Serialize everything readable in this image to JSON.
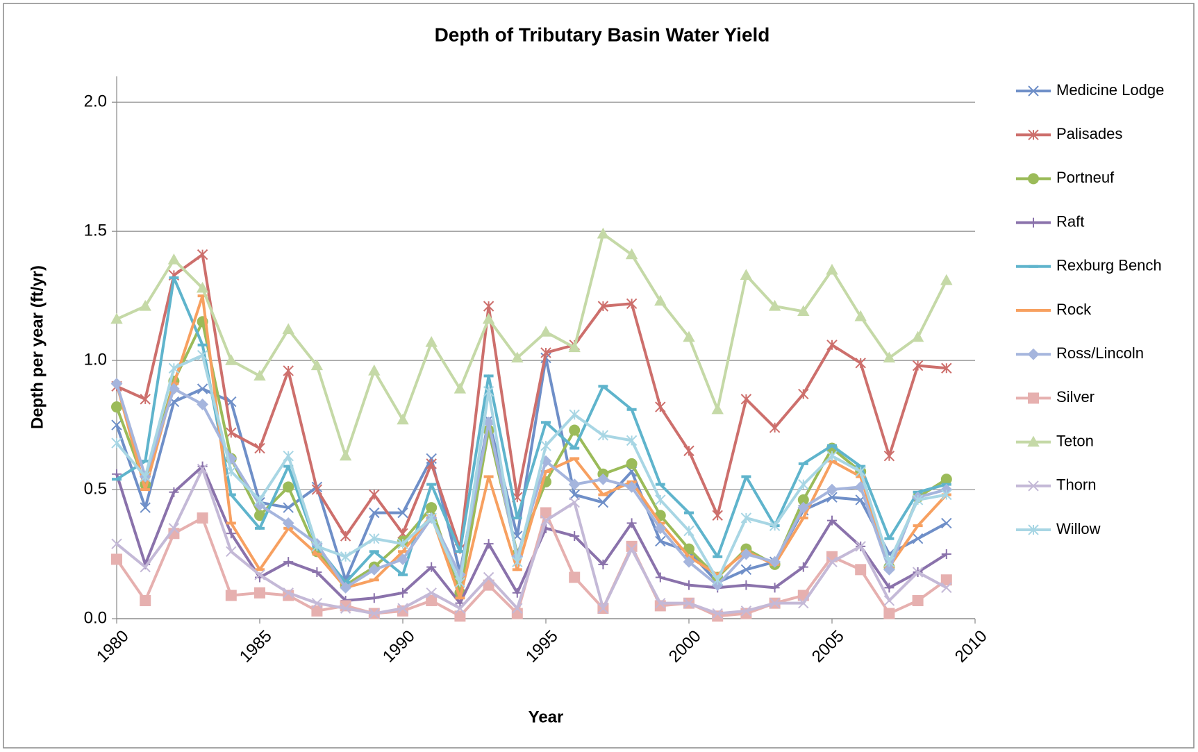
{
  "chart_data": {
    "type": "line",
    "title": "Depth of Tributary Basin Water Yield",
    "x_label": "Year",
    "y_label": "Depth per year (ft/yr)",
    "x": [
      1980,
      1981,
      1982,
      1983,
      1984,
      1985,
      1986,
      1987,
      1988,
      1989,
      1990,
      1991,
      1992,
      1993,
      1994,
      1995,
      1996,
      1997,
      1998,
      1999,
      2000,
      2001,
      2002,
      2003,
      2004,
      2005,
      2006,
      2007,
      2008,
      2009
    ],
    "xlim": [
      1980,
      2010
    ],
    "xticks": [
      1980,
      1985,
      1990,
      1995,
      2000,
      2005,
      2010
    ],
    "ylim": [
      0,
      2.1
    ],
    "yticks": [
      {
        "value": 0,
        "label": "0.0"
      },
      0.5,
      {
        "value": 1,
        "label": "1.0"
      },
      1.5,
      {
        "value": 2,
        "label": "2.0"
      }
    ],
    "grid": true,
    "legend": "right",
    "series": [
      {
        "name": "Medicine Lodge",
        "color": "#6f8fc8",
        "marker": "x",
        "values": [
          0.75,
          0.43,
          0.84,
          0.89,
          0.84,
          0.45,
          0.43,
          0.51,
          0.15,
          0.41,
          0.41,
          0.62,
          0.18,
          0.77,
          0.32,
          1.01,
          0.48,
          0.45,
          0.57,
          0.3,
          0.26,
          0.14,
          0.19,
          0.22,
          0.42,
          0.47,
          0.46,
          0.25,
          0.31,
          0.37
        ]
      },
      {
        "name": "Palisades",
        "color": "#cd6f6c",
        "marker": "asterisk",
        "values": [
          0.9,
          0.85,
          1.33,
          1.41,
          0.72,
          0.66,
          0.96,
          0.5,
          0.32,
          0.48,
          0.33,
          0.6,
          0.27,
          1.21,
          0.47,
          1.03,
          1.06,
          1.21,
          1.22,
          0.82,
          0.65,
          0.4,
          0.85,
          0.74,
          0.87,
          1.06,
          0.99,
          0.63,
          0.98,
          0.97
        ]
      },
      {
        "name": "Portneuf",
        "color": "#9bbb59",
        "marker": "circle",
        "values": [
          0.82,
          0.52,
          0.92,
          1.15,
          0.62,
          0.4,
          0.51,
          0.26,
          0.13,
          0.2,
          0.3,
          0.43,
          0.1,
          0.73,
          0.25,
          0.53,
          0.73,
          0.56,
          0.6,
          0.4,
          0.27,
          0.16,
          0.27,
          0.21,
          0.46,
          0.66,
          0.57,
          0.2,
          0.47,
          0.54
        ]
      },
      {
        "name": "Raft",
        "color": "#8a72ab",
        "marker": "plus",
        "values": [
          0.56,
          0.21,
          0.49,
          0.59,
          0.33,
          0.16,
          0.22,
          0.18,
          0.07,
          0.08,
          0.1,
          0.2,
          0.06,
          0.29,
          0.1,
          0.35,
          0.32,
          0.21,
          0.37,
          0.16,
          0.13,
          0.12,
          0.13,
          0.12,
          0.2,
          0.38,
          0.28,
          0.12,
          0.18,
          0.25
        ]
      },
      {
        "name": "Rexburg Bench",
        "color": "#5fb4cc",
        "marker": "dash",
        "values": [
          0.54,
          0.61,
          1.32,
          1.06,
          0.48,
          0.35,
          0.59,
          0.28,
          0.14,
          0.26,
          0.17,
          0.52,
          0.26,
          0.94,
          0.39,
          0.76,
          0.66,
          0.9,
          0.81,
          0.52,
          0.41,
          0.24,
          0.55,
          0.36,
          0.6,
          0.67,
          0.59,
          0.31,
          0.49,
          0.52
        ]
      },
      {
        "name": "Rock",
        "color": "#f7a060",
        "marker": "dash",
        "values": [
          0.91,
          0.5,
          0.91,
          1.25,
          0.37,
          0.19,
          0.35,
          0.25,
          0.12,
          0.15,
          0.26,
          0.4,
          0.08,
          0.55,
          0.19,
          0.57,
          0.62,
          0.48,
          0.53,
          0.37,
          0.24,
          0.17,
          0.26,
          0.21,
          0.39,
          0.61,
          0.55,
          0.2,
          0.36,
          0.48
        ]
      },
      {
        "name": "Ross/Lincoln",
        "color": "#a5b5dd",
        "marker": "diamond",
        "values": [
          0.91,
          0.55,
          0.89,
          0.83,
          0.62,
          0.44,
          0.37,
          0.29,
          0.12,
          0.19,
          0.23,
          0.39,
          0.17,
          0.76,
          0.24,
          0.61,
          0.52,
          0.54,
          0.51,
          0.35,
          0.22,
          0.13,
          0.25,
          0.22,
          0.43,
          0.5,
          0.51,
          0.19,
          0.47,
          0.5
        ]
      },
      {
        "name": "Silver",
        "color": "#e6b0af",
        "marker": "square",
        "values": [
          0.23,
          0.07,
          0.33,
          0.39,
          0.09,
          0.1,
          0.09,
          0.03,
          0.05,
          0.02,
          0.03,
          0.07,
          0.01,
          0.13,
          0.02,
          0.41,
          0.16,
          0.04,
          0.28,
          0.05,
          0.06,
          0.01,
          0.02,
          0.06,
          0.09,
          0.24,
          0.19,
          0.02,
          0.07,
          0.15
        ]
      },
      {
        "name": "Teton",
        "color": "#c5d9a7",
        "marker": "triangle",
        "values": [
          1.16,
          1.21,
          1.39,
          1.28,
          1.0,
          0.94,
          1.12,
          0.98,
          0.63,
          0.96,
          0.77,
          1.07,
          0.89,
          1.16,
          1.01,
          1.11,
          1.05,
          1.49,
          1.41,
          1.23,
          1.09,
          0.81,
          1.33,
          1.21,
          1.19,
          1.35,
          1.17,
          1.01,
          1.09,
          1.31
        ]
      },
      {
        "name": "Thorn",
        "color": "#c4b9d7",
        "marker": "x",
        "values": [
          0.29,
          0.2,
          0.35,
          0.58,
          0.26,
          0.17,
          0.1,
          0.06,
          0.04,
          0.02,
          0.04,
          0.1,
          0.04,
          0.16,
          0.04,
          0.38,
          0.45,
          0.04,
          0.27,
          0.06,
          0.06,
          0.02,
          0.03,
          0.06,
          0.06,
          0.22,
          0.28,
          0.07,
          0.18,
          0.12
        ]
      },
      {
        "name": "Willow",
        "color": "#a8d6e4",
        "marker": "asterisk",
        "values": [
          0.68,
          0.55,
          0.97,
          1.02,
          0.57,
          0.46,
          0.63,
          0.28,
          0.24,
          0.31,
          0.29,
          0.39,
          0.14,
          0.88,
          0.22,
          0.67,
          0.79,
          0.71,
          0.69,
          0.46,
          0.34,
          0.15,
          0.39,
          0.36,
          0.52,
          0.63,
          0.57,
          0.22,
          0.46,
          0.48
        ]
      }
    ]
  }
}
